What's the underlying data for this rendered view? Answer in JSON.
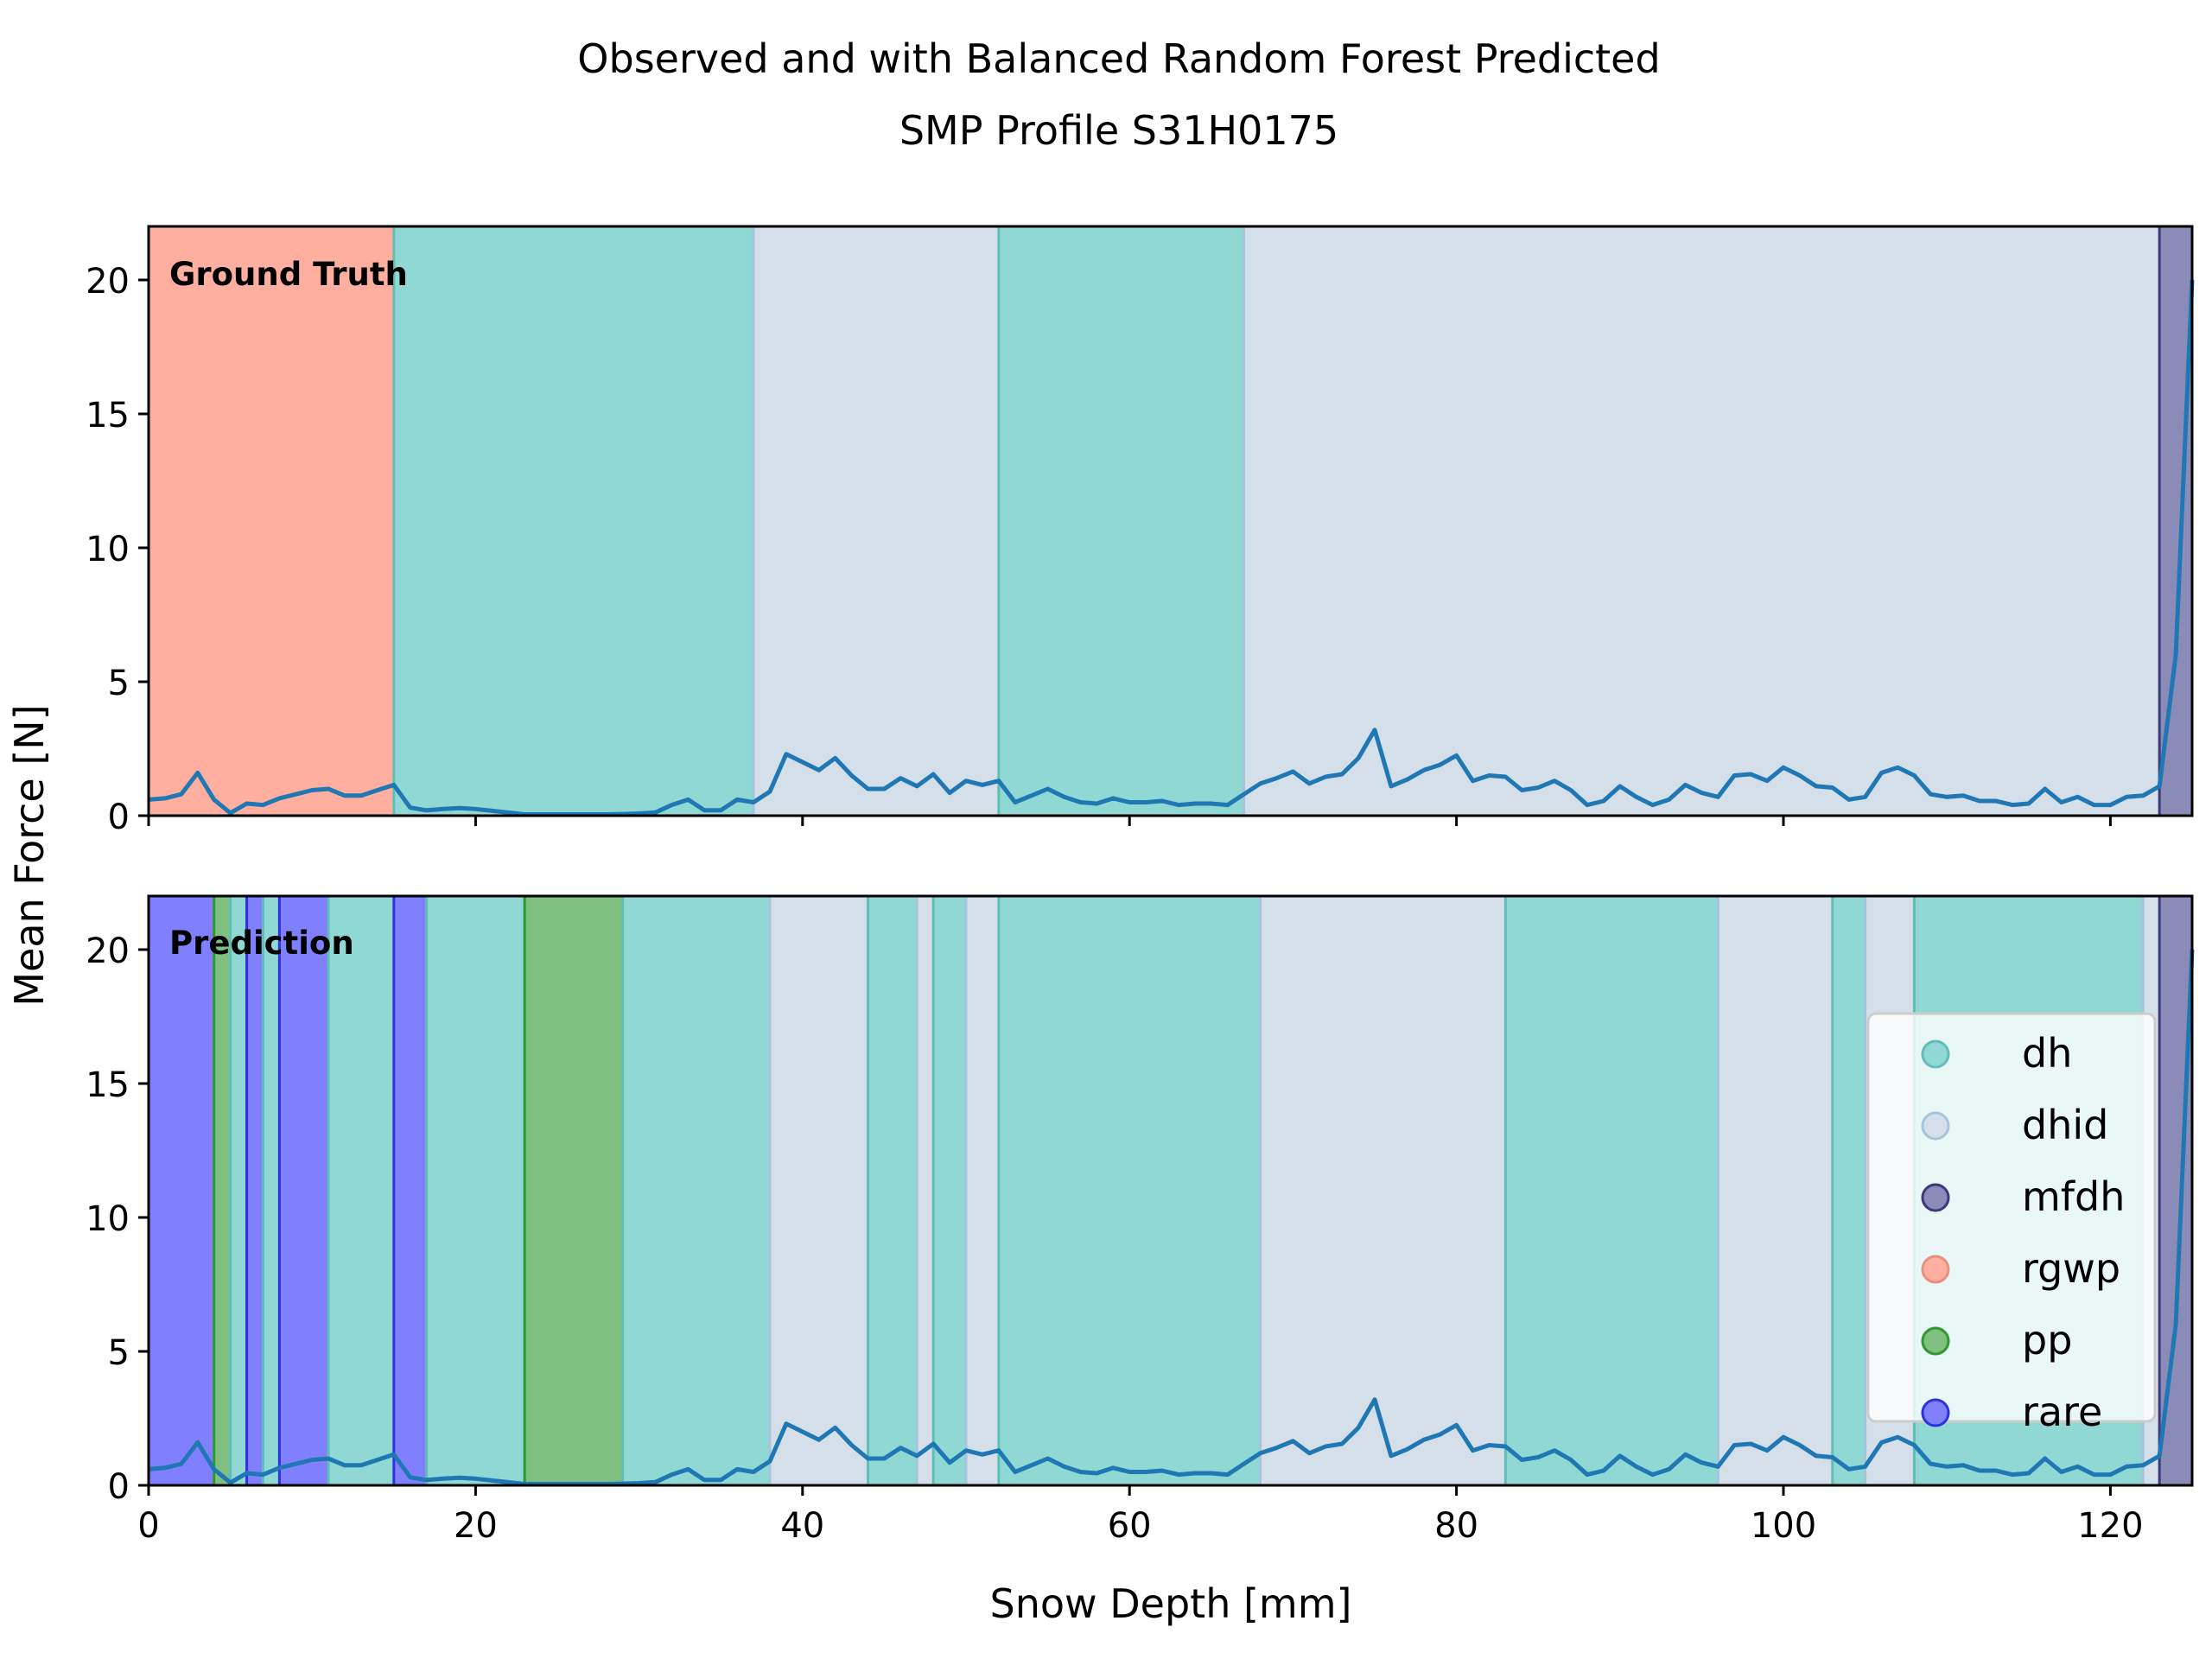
{
  "chart_data": {
    "type": "line",
    "title_line1": "Observed and with Balanced Random Forest Predicted",
    "title_line2": "SMP Profile S31H0175",
    "xlabel": "Snow Depth [mm]",
    "ylabel": "Mean Force [N]",
    "xlim": [
      0,
      125
    ],
    "ylim": [
      0,
      22
    ],
    "xticks": [
      0,
      20,
      40,
      60,
      80,
      100,
      120
    ],
    "yticks": [
      0,
      5,
      10,
      15,
      20
    ],
    "line_color": "#1f77b4",
    "classes": [
      {
        "label": "dh",
        "color": "#8fd8d3"
      },
      {
        "label": "dhid",
        "color": "#d5dfea"
      },
      {
        "label": "mfdh",
        "color": "#8b8bb8"
      },
      {
        "label": "rgwp",
        "color": "#ffafa0"
      },
      {
        "label": "pp",
        "color": "#7fbf7f"
      },
      {
        "label": "rare",
        "color": "#8080ff"
      }
    ],
    "class_edges": {
      "dh": "#5fbfb7",
      "dhid": "#a8c4dc",
      "mfdh": "#3a3a7a",
      "rgwp": "#e88f7e",
      "pp": "#2a9a2a",
      "rare": "#3030e0"
    },
    "panels": [
      {
        "label": "Ground Truth",
        "segments": [
          {
            "start": 0,
            "end": 15,
            "cls": "rgwp"
          },
          {
            "start": 15,
            "end": 37,
            "cls": "dh"
          },
          {
            "start": 37,
            "end": 52,
            "cls": "dhid"
          },
          {
            "start": 52,
            "end": 67,
            "cls": "dh"
          },
          {
            "start": 67,
            "end": 123,
            "cls": "dhid"
          },
          {
            "start": 123,
            "end": 125,
            "cls": "mfdh"
          }
        ]
      },
      {
        "label": "Prediction",
        "segments": [
          {
            "start": 0,
            "end": 4,
            "cls": "rare"
          },
          {
            "start": 4,
            "end": 5,
            "cls": "pp"
          },
          {
            "start": 5,
            "end": 6,
            "cls": "dh"
          },
          {
            "start": 6,
            "end": 7,
            "cls": "rare"
          },
          {
            "start": 7,
            "end": 8,
            "cls": "dh"
          },
          {
            "start": 8,
            "end": 11,
            "cls": "rare"
          },
          {
            "start": 11,
            "end": 15,
            "cls": "dh"
          },
          {
            "start": 15,
            "end": 17,
            "cls": "rare"
          },
          {
            "start": 17,
            "end": 23,
            "cls": "dh"
          },
          {
            "start": 23,
            "end": 29,
            "cls": "pp"
          },
          {
            "start": 29,
            "end": 38,
            "cls": "dh"
          },
          {
            "start": 38,
            "end": 44,
            "cls": "dhid"
          },
          {
            "start": 44,
            "end": 47,
            "cls": "dh"
          },
          {
            "start": 47,
            "end": 48,
            "cls": "dhid"
          },
          {
            "start": 48,
            "end": 50,
            "cls": "dh"
          },
          {
            "start": 50,
            "end": 52,
            "cls": "dhid"
          },
          {
            "start": 52,
            "end": 68,
            "cls": "dh"
          },
          {
            "start": 68,
            "end": 83,
            "cls": "dhid"
          },
          {
            "start": 83,
            "end": 96,
            "cls": "dh"
          },
          {
            "start": 96,
            "end": 103,
            "cls": "dhid"
          },
          {
            "start": 103,
            "end": 105,
            "cls": "dh"
          },
          {
            "start": 105,
            "end": 108,
            "cls": "dhid"
          },
          {
            "start": 108,
            "end": 122,
            "cls": "dh"
          },
          {
            "start": 122,
            "end": 123,
            "cls": "dhid"
          },
          {
            "start": 123,
            "end": 125,
            "cls": "mfdh"
          }
        ]
      }
    ],
    "series": [
      {
        "name": "Mean Force",
        "x": [
          0,
          1,
          2,
          3,
          4,
          5,
          6,
          7,
          8,
          9,
          10,
          11,
          12,
          13,
          14,
          15,
          16,
          17,
          18,
          19,
          20,
          21,
          22,
          23,
          24,
          25,
          26,
          27,
          28,
          29,
          30,
          31,
          32,
          33,
          34,
          35,
          36,
          37,
          38,
          39,
          40,
          41,
          42,
          43,
          44,
          45,
          46,
          47,
          48,
          49,
          50,
          51,
          52,
          53,
          54,
          55,
          56,
          57,
          58,
          59,
          60,
          61,
          62,
          63,
          64,
          65,
          66,
          67,
          68,
          69,
          70,
          71,
          72,
          73,
          74,
          75,
          76,
          77,
          78,
          79,
          80,
          81,
          82,
          83,
          84,
          85,
          86,
          87,
          88,
          89,
          90,
          91,
          92,
          93,
          94,
          95,
          96,
          97,
          98,
          99,
          100,
          101,
          102,
          103,
          104,
          105,
          106,
          107,
          108,
          109,
          110,
          111,
          112,
          113,
          114,
          115,
          116,
          117,
          118,
          119,
          120,
          121,
          122,
          123,
          124,
          125
        ],
        "y": [
          0.6,
          0.65,
          0.8,
          1.6,
          0.6,
          0.1,
          0.45,
          0.4,
          0.65,
          0.8,
          0.95,
          1.0,
          0.75,
          0.75,
          0.95,
          1.15,
          0.3,
          0.2,
          0.25,
          0.28,
          0.25,
          0.18,
          0.12,
          0.05,
          0.05,
          0.05,
          0.05,
          0.05,
          0.05,
          0.06,
          0.08,
          0.12,
          0.4,
          0.6,
          0.2,
          0.2,
          0.6,
          0.5,
          0.9,
          2.3,
          2.0,
          1.7,
          2.15,
          1.5,
          1.0,
          1.0,
          1.4,
          1.1,
          1.55,
          0.85,
          1.3,
          1.15,
          1.3,
          0.5,
          0.75,
          1.0,
          0.7,
          0.5,
          0.45,
          0.65,
          0.5,
          0.5,
          0.55,
          0.4,
          0.45,
          0.45,
          0.4,
          0.8,
          1.2,
          1.4,
          1.65,
          1.2,
          1.45,
          1.55,
          2.15,
          3.2,
          1.1,
          1.35,
          1.7,
          1.9,
          2.25,
          1.3,
          1.5,
          1.45,
          0.95,
          1.05,
          1.3,
          0.95,
          0.4,
          0.55,
          1.1,
          0.7,
          0.4,
          0.6,
          1.15,
          0.85,
          0.7,
          1.5,
          1.55,
          1.3,
          1.8,
          1.5,
          1.1,
          1.05,
          0.6,
          0.7,
          1.6,
          1.8,
          1.5,
          0.8,
          0.7,
          0.75,
          0.55,
          0.55,
          0.4,
          0.45,
          1.0,
          0.5,
          0.7,
          0.4,
          0.4,
          0.7,
          0.75,
          1.1,
          6.0,
          20.0
        ]
      }
    ]
  }
}
